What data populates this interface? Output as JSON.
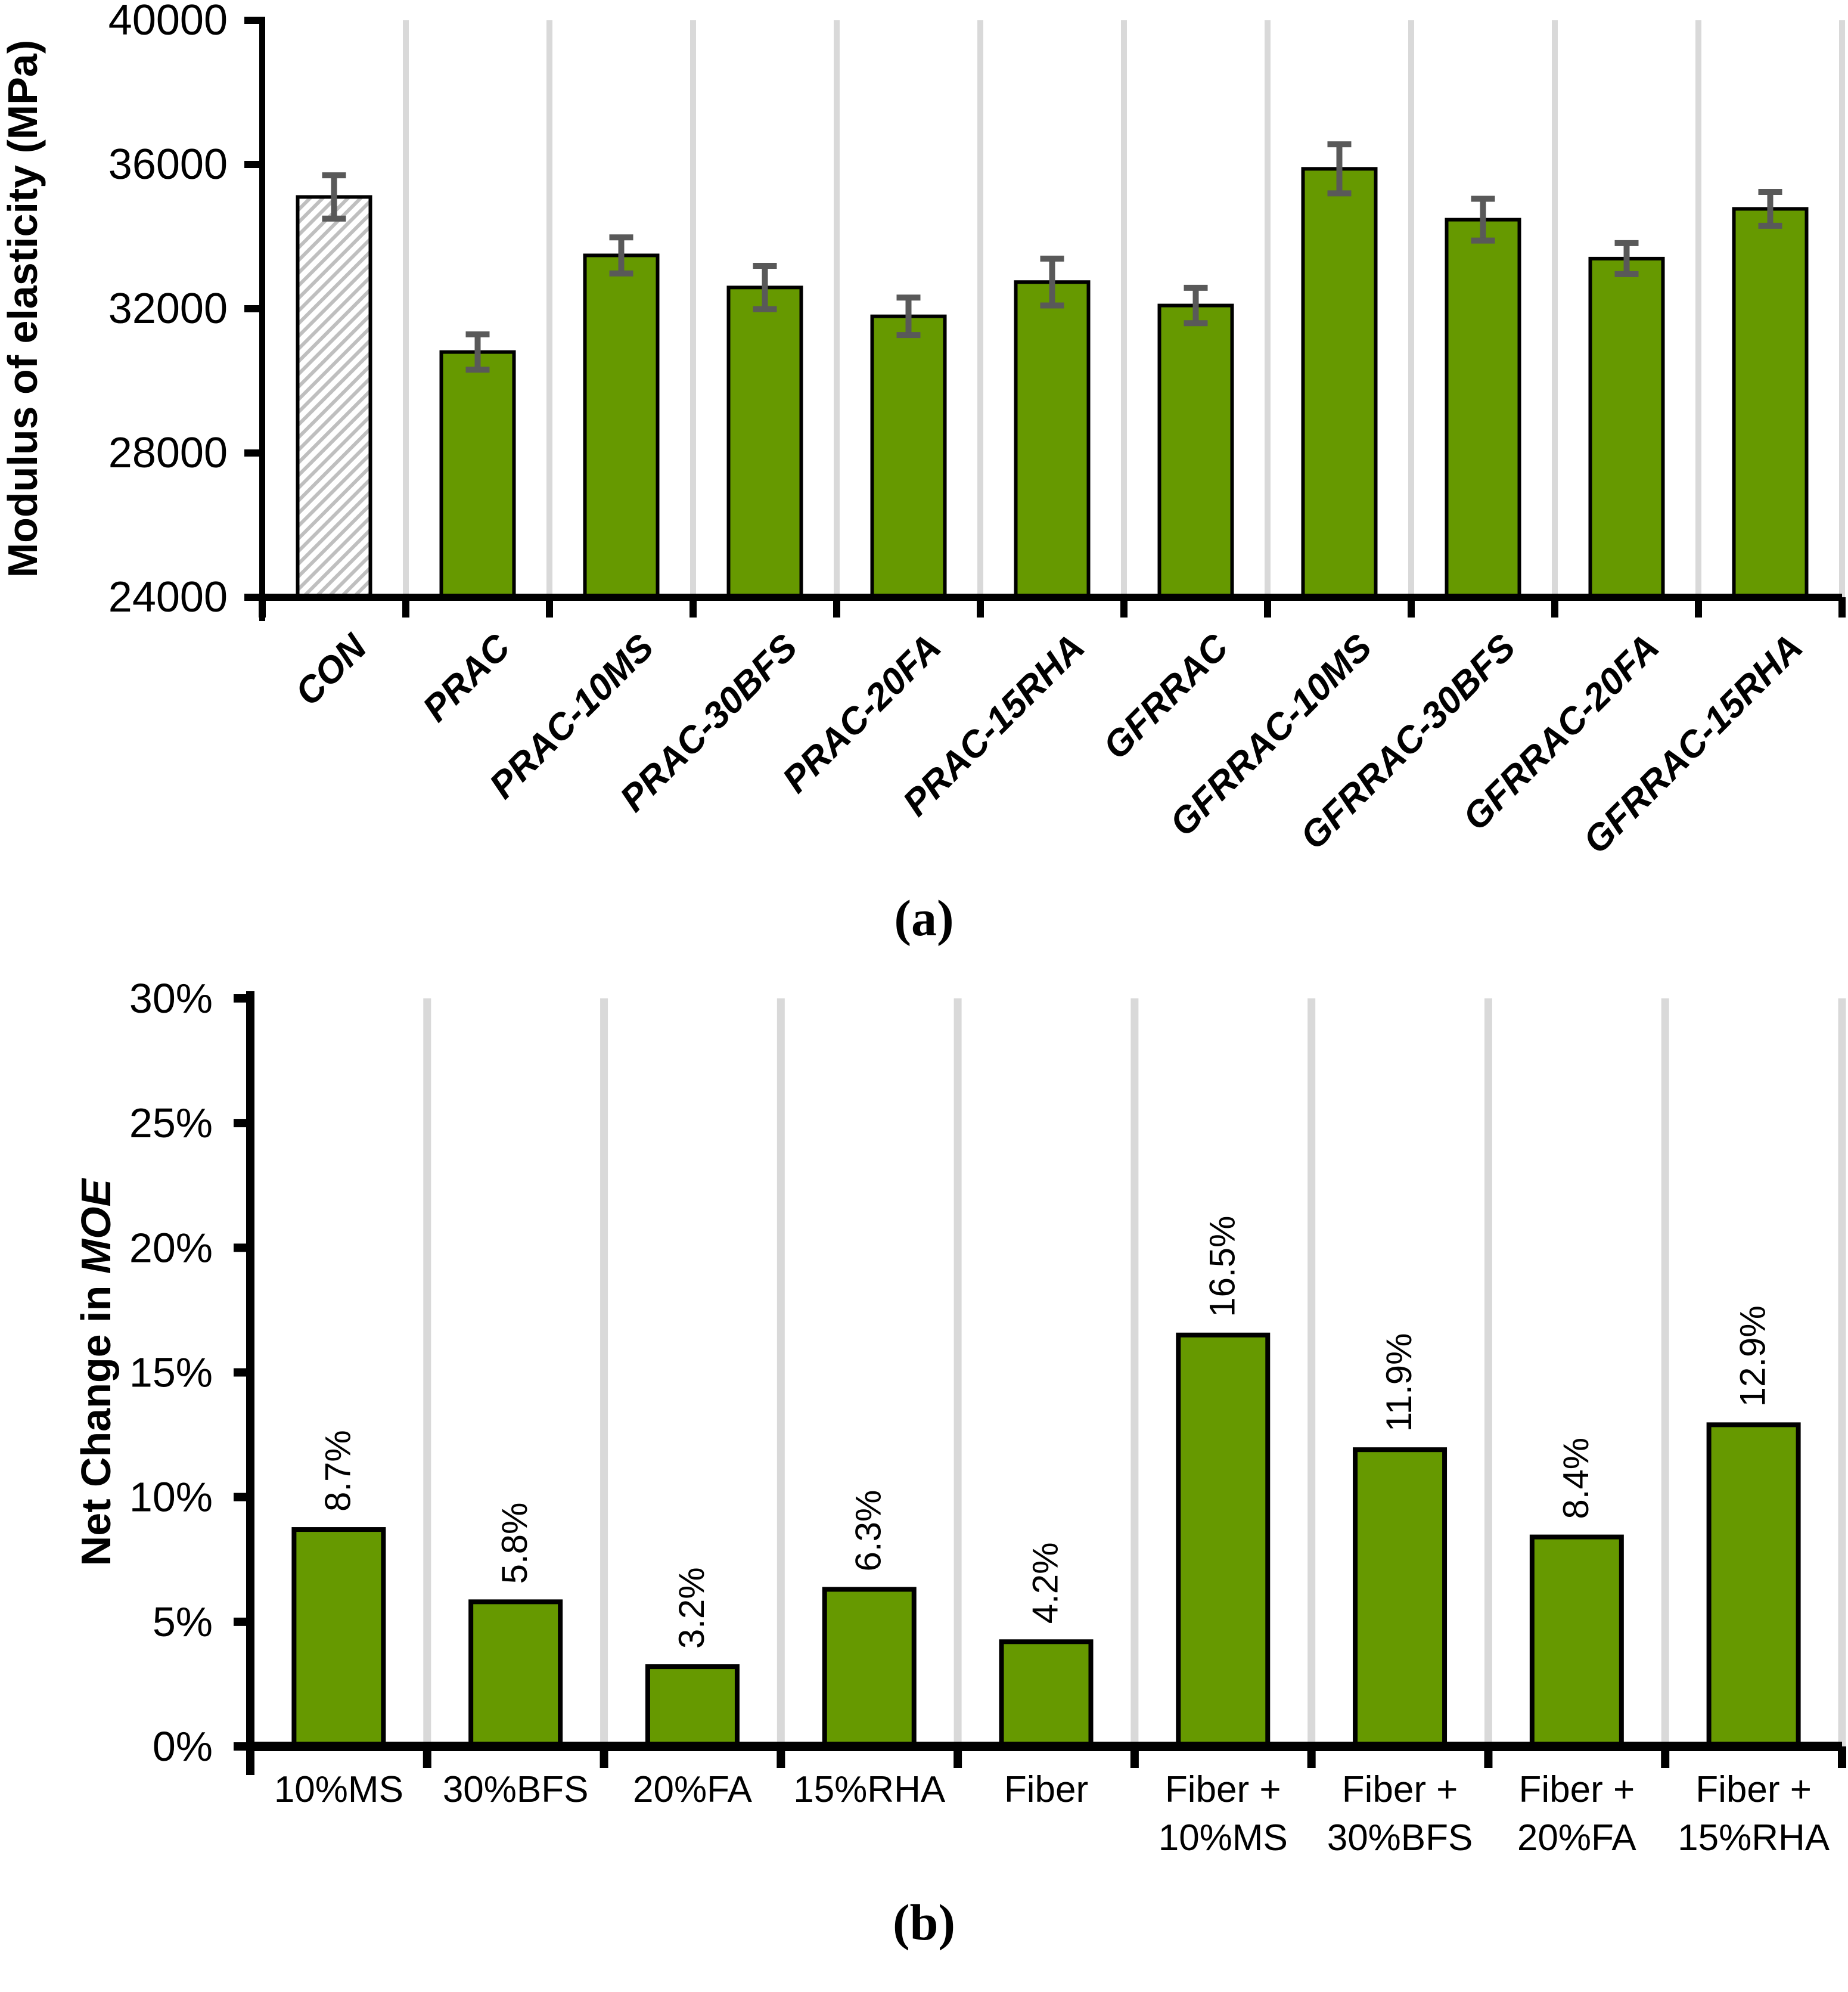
{
  "figure": {
    "caption_a": "(a)",
    "caption_b": "(b)"
  },
  "colors": {
    "bar_fill_green": "#669900",
    "bar_border": "#000000",
    "hatch_stripe": "#BFBFBF",
    "hatch_background": "#FFFFFF",
    "error_bar": "#595959",
    "gridline": "#D9D9D9",
    "axis": "#000000",
    "text": "#000000",
    "background": "#FFFFFF"
  },
  "chart_data": [
    {
      "panel": "a",
      "type": "bar",
      "title": "",
      "xlabel": "",
      "ylabel": "Modulus of elasticity (MPa)",
      "ylim": [
        24000,
        40000
      ],
      "ytick_values": [
        24000,
        28000,
        32000,
        36000,
        40000
      ],
      "ytick_labels": [
        "24000",
        "28000",
        "32000",
        "36000",
        "40000"
      ],
      "grid": "vertical-category-separators",
      "legend": "none",
      "categories": [
        "CON",
        "PRAC",
        "PRAC-10MS",
        "PRAC-30BFS",
        "PRAC-20FA",
        "PRAC-15RHA",
        "GFRRAC",
        "GFRRAC-10MS",
        "GFRRAC-30BFS",
        "GFRRAC-20FA",
        "GFRRAC-15RHA"
      ],
      "values": [
        35100,
        30800,
        33480,
        32590,
        31790,
        32740,
        32090,
        35880,
        34470,
        33390,
        34770
      ],
      "error_bars": [
        600,
        490,
        500,
        600,
        520,
        650,
        490,
        680,
        580,
        430,
        470
      ],
      "bar_styles": [
        "hatched",
        "green",
        "green",
        "green",
        "green",
        "green",
        "green",
        "green",
        "green",
        "green",
        "green"
      ]
    },
    {
      "panel": "b",
      "type": "bar",
      "title": "",
      "xlabel": "",
      "ylabel_prefix": "Net Change in ",
      "ylabel_italic": "MOE",
      "ylim_percent": [
        0,
        30
      ],
      "ytick_values": [
        0,
        5,
        10,
        15,
        20,
        25,
        30
      ],
      "ytick_labels": [
        "0%",
        "5%",
        "10%",
        "15%",
        "20%",
        "25%",
        "30%"
      ],
      "grid": "vertical-category-separators",
      "legend": "none",
      "categories": [
        "10%MS",
        "30%BFS",
        "20%FA",
        "15%RHA",
        "Fiber",
        "Fiber + 10%MS",
        "Fiber + 30%BFS",
        "Fiber + 20%FA",
        "Fiber + 15%RHA"
      ],
      "category_label_lines": [
        [
          "10%MS"
        ],
        [
          "30%BFS"
        ],
        [
          "20%FA"
        ],
        [
          "15%RHA"
        ],
        [
          "Fiber"
        ],
        [
          "Fiber +",
          "10%MS"
        ],
        [
          "Fiber +",
          "30%BFS"
        ],
        [
          "Fiber +",
          "20%FA"
        ],
        [
          "Fiber +",
          "15%RHA"
        ]
      ],
      "values_percent": [
        8.7,
        5.8,
        3.2,
        6.3,
        4.2,
        16.5,
        11.9,
        8.4,
        12.9
      ],
      "data_labels": [
        "8.7%",
        "5.8%",
        "3.2%",
        "6.3%",
        "4.2%",
        "16.5%",
        "11.9%",
        "8.4%",
        "12.9%"
      ]
    }
  ]
}
